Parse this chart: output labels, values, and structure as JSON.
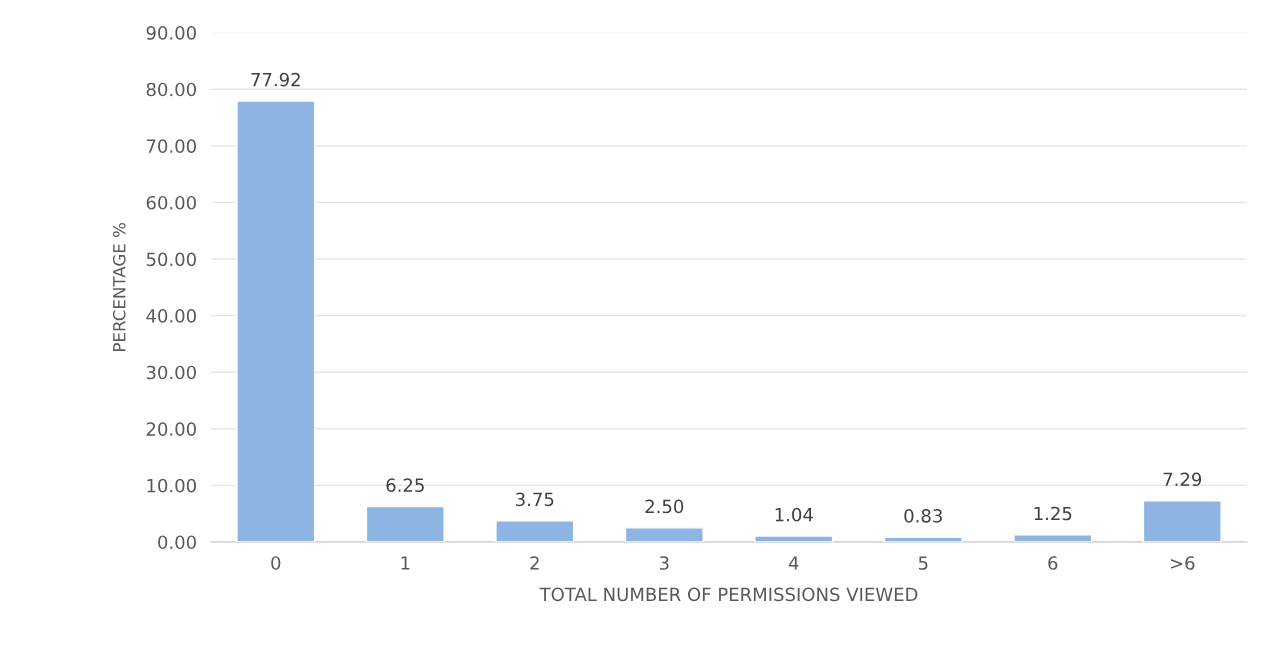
{
  "chart_data": {
    "type": "bar",
    "xlabel": "TOTAL NUMBER OF PERMISSIONS VIEWED",
    "ylabel": "PERCENTAGE %",
    "categories": [
      "0",
      "1",
      "2",
      "3",
      "4",
      "5",
      "6",
      ">6"
    ],
    "values": [
      77.92,
      6.25,
      3.75,
      2.5,
      1.04,
      0.83,
      1.25,
      7.29
    ],
    "value_labels": [
      "77.92",
      "6.25",
      "3.75",
      "2.50",
      "1.04",
      "0.83",
      "1.25",
      "7.29"
    ],
    "color": "#8db4e2",
    "ylim": [
      0,
      90
    ],
    "yticks": [
      {
        "value": 0,
        "label": "0.00"
      },
      {
        "value": 10,
        "label": "10.00"
      },
      {
        "value": 20,
        "label": "20.00"
      },
      {
        "value": 30,
        "label": "30.00"
      },
      {
        "value": 40,
        "label": "40.00"
      },
      {
        "value": 50,
        "label": "50.00"
      },
      {
        "value": 60,
        "label": "60.00"
      },
      {
        "value": 70,
        "label": "70.00"
      },
      {
        "value": 80,
        "label": "80.00"
      },
      {
        "value": 90,
        "label": "90.00"
      }
    ],
    "grid": "y"
  }
}
